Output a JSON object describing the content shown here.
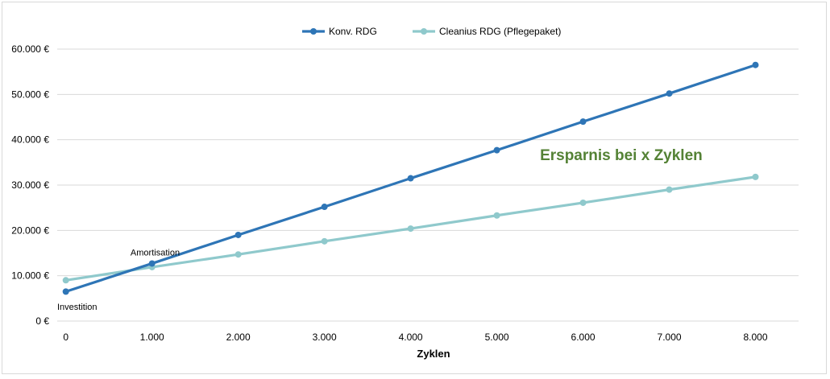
{
  "chart_data": {
    "type": "line",
    "title": "",
    "xlabel": "Zyklen",
    "ylabel": "",
    "x": [
      0,
      1000,
      2000,
      3000,
      4000,
      5000,
      6000,
      7000,
      8000
    ],
    "x_tick_labels": [
      "0",
      "1.000",
      "2.000",
      "3.000",
      "4.000",
      "5.000",
      "6.000",
      "7.000",
      "8.000"
    ],
    "ylim": [
      0,
      60000
    ],
    "y_ticks": [
      0,
      10000,
      20000,
      30000,
      40000,
      50000,
      60000
    ],
    "y_tick_labels": [
      "0 €",
      "10.000 €",
      "20.000 €",
      "30.000 €",
      "40.000 €",
      "50.000 €",
      "60.000 €"
    ],
    "grid": true,
    "legend_position": "top-center",
    "series": [
      {
        "name": "Konv. RDG",
        "color": "#2e75b6",
        "values": [
          6500,
          12700,
          19000,
          25200,
          31500,
          37700,
          44000,
          50200,
          56500
        ]
      },
      {
        "name": "Cleanius RDG (Pflegepaket)",
        "color": "#8fc9cc",
        "values": [
          9000,
          11900,
          14700,
          17600,
          20400,
          23300,
          26100,
          29000,
          31800
        ]
      }
    ],
    "annotations": [
      {
        "text": "Amortisation",
        "x": 750,
        "y": 14500
      },
      {
        "text": "Investition",
        "x": -100,
        "y": 2500
      },
      {
        "text": "Ersparnis bei x Zyklen",
        "x": 5500,
        "y": 35500,
        "color": "#548235"
      }
    ]
  }
}
